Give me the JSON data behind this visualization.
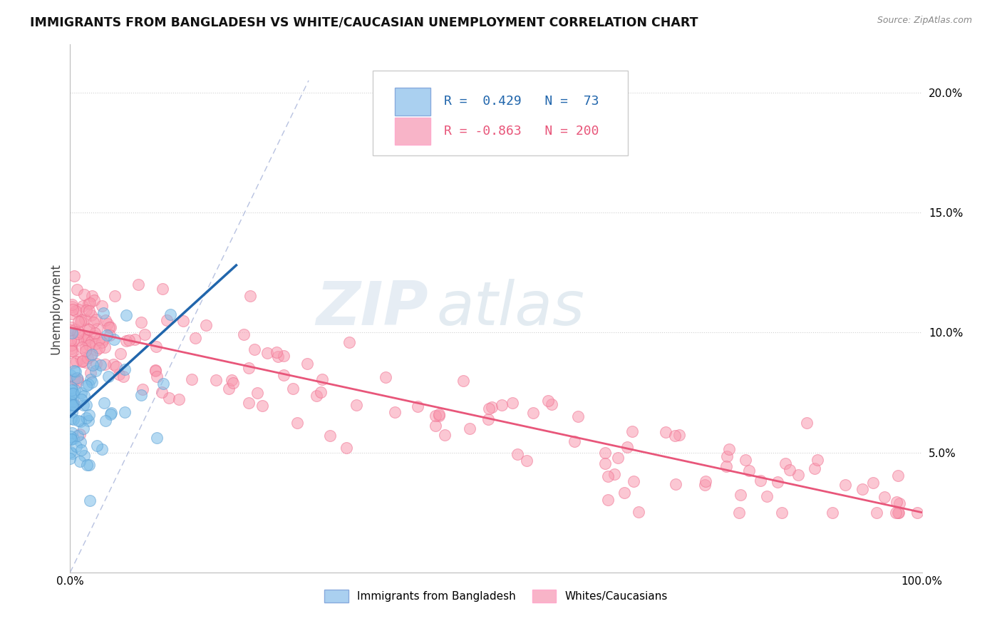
{
  "title": "IMMIGRANTS FROM BANGLADESH VS WHITE/CAUCASIAN UNEMPLOYMENT CORRELATION CHART",
  "source": "Source: ZipAtlas.com",
  "ylabel": "Unemployment",
  "yticks": [
    0.05,
    0.1,
    0.15,
    0.2
  ],
  "xrange": [
    0.0,
    1.0
  ],
  "yrange": [
    0.0,
    0.22
  ],
  "blue_R": 0.429,
  "blue_N": 73,
  "pink_R": -0.863,
  "pink_N": 200,
  "blue_color": "#7bbde8",
  "pink_color": "#f99ab0",
  "blue_edge_color": "#5a9fd4",
  "pink_edge_color": "#f07090",
  "blue_line_color": "#2166ac",
  "pink_line_color": "#e8567a",
  "legend_blue_fill": "#aad0f0",
  "legend_pink_fill": "#f8b4c8",
  "blue_label": "Immigrants from Bangladesh",
  "pink_label": "Whites/Caucasians",
  "watermark_zip": "ZIP",
  "watermark_atlas": "atlas",
  "background_color": "#ffffff",
  "grid_color": "#cccccc",
  "diag_color": "#8899cc"
}
